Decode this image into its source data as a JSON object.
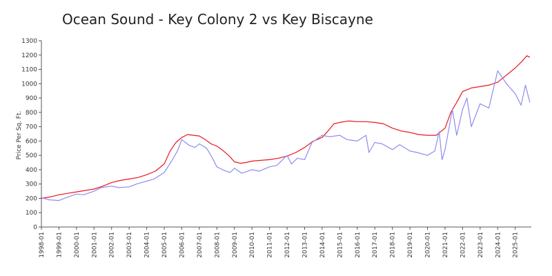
{
  "chart_data": {
    "type": "line",
    "title": "Ocean Sound - Key Colony 2 vs Key Biscayne",
    "ylabel": "Price Per Sq. Ft.",
    "xlabel": "",
    "ylim": [
      0,
      1300
    ],
    "yticks": [
      0,
      100,
      200,
      300,
      400,
      500,
      600,
      700,
      800,
      900,
      1000,
      1100,
      1200,
      1300
    ],
    "xlim": [
      "1998-01",
      "2025-12"
    ],
    "xticks": [
      "1998-01",
      "1999-01",
      "2000-01",
      "2001-01",
      "2002-01",
      "2003-01",
      "2004-01",
      "2005-01",
      "2006-01",
      "2007-01",
      "2008-01",
      "2009-01",
      "2010-01",
      "2011-01",
      "2012-01",
      "2013-01",
      "2014-01",
      "2015-01",
      "2016-01",
      "2017-01",
      "2018-01",
      "2019-01",
      "2020-01",
      "2021-01",
      "2022-01",
      "2023-01",
      "2024-01",
      "2025-01"
    ],
    "grid": false,
    "series": [
      {
        "color": "#e8141e",
        "points": [
          [
            "1998-01",
            200
          ],
          [
            "1998-07",
            210
          ],
          [
            "1999-01",
            225
          ],
          [
            "1999-07",
            235
          ],
          [
            "2000-01",
            245
          ],
          [
            "2000-07",
            255
          ],
          [
            "2001-01",
            265
          ],
          [
            "2001-07",
            285
          ],
          [
            "2002-01",
            310
          ],
          [
            "2002-07",
            325
          ],
          [
            "2003-01",
            335
          ],
          [
            "2003-07",
            345
          ],
          [
            "2004-01",
            365
          ],
          [
            "2004-07",
            390
          ],
          [
            "2005-01",
            440
          ],
          [
            "2005-05",
            530
          ],
          [
            "2005-09",
            590
          ],
          [
            "2006-01",
            625
          ],
          [
            "2006-05",
            645
          ],
          [
            "2006-09",
            640
          ],
          [
            "2007-01",
            635
          ],
          [
            "2007-05",
            610
          ],
          [
            "2007-09",
            580
          ],
          [
            "2008-01",
            565
          ],
          [
            "2008-05",
            535
          ],
          [
            "2008-09",
            500
          ],
          [
            "2009-01",
            455
          ],
          [
            "2009-05",
            445
          ],
          [
            "2009-09",
            450
          ],
          [
            "2010-01",
            460
          ],
          [
            "2010-07",
            465
          ],
          [
            "2011-01",
            470
          ],
          [
            "2011-07",
            480
          ],
          [
            "2012-01",
            495
          ],
          [
            "2012-07",
            520
          ],
          [
            "2013-01",
            555
          ],
          [
            "2013-07",
            600
          ],
          [
            "2014-01",
            625
          ],
          [
            "2014-05",
            670
          ],
          [
            "2014-09",
            720
          ],
          [
            "2015-01",
            730
          ],
          [
            "2015-07",
            740
          ],
          [
            "2016-01",
            735
          ],
          [
            "2016-07",
            735
          ],
          [
            "2017-01",
            730
          ],
          [
            "2017-07",
            720
          ],
          [
            "2018-01",
            690
          ],
          [
            "2018-07",
            670
          ],
          [
            "2019-01",
            660
          ],
          [
            "2019-07",
            645
          ],
          [
            "2020-01",
            640
          ],
          [
            "2020-07",
            640
          ],
          [
            "2021-01",
            690
          ],
          [
            "2021-05",
            800
          ],
          [
            "2021-09",
            870
          ],
          [
            "2022-01",
            945
          ],
          [
            "2022-07",
            970
          ],
          [
            "2023-01",
            980
          ],
          [
            "2023-07",
            990
          ],
          [
            "2024-01",
            1010
          ],
          [
            "2024-07",
            1060
          ],
          [
            "2025-01",
            1110
          ],
          [
            "2025-05",
            1150
          ],
          [
            "2025-09",
            1195
          ],
          [
            "2025-11",
            1185
          ]
        ]
      },
      {
        "color": "#8c8cf0",
        "points": [
          [
            "1998-01",
            205
          ],
          [
            "1998-06",
            190
          ],
          [
            "1999-01",
            185
          ],
          [
            "1999-06",
            205
          ],
          [
            "2000-01",
            230
          ],
          [
            "2000-06",
            225
          ],
          [
            "2001-01",
            250
          ],
          [
            "2001-06",
            275
          ],
          [
            "2002-01",
            285
          ],
          [
            "2002-06",
            275
          ],
          [
            "2003-01",
            280
          ],
          [
            "2003-06",
            300
          ],
          [
            "2004-01",
            320
          ],
          [
            "2004-06",
            335
          ],
          [
            "2005-01",
            380
          ],
          [
            "2005-06",
            460
          ],
          [
            "2005-10",
            530
          ],
          [
            "2006-01",
            610
          ],
          [
            "2006-06",
            570
          ],
          [
            "2006-10",
            555
          ],
          [
            "2007-01",
            580
          ],
          [
            "2007-06",
            550
          ],
          [
            "2007-10",
            480
          ],
          [
            "2008-01",
            420
          ],
          [
            "2008-06",
            395
          ],
          [
            "2008-10",
            380
          ],
          [
            "2009-01",
            410
          ],
          [
            "2009-06",
            375
          ],
          [
            "2010-01",
            400
          ],
          [
            "2010-06",
            390
          ],
          [
            "2011-01",
            420
          ],
          [
            "2011-06",
            430
          ],
          [
            "2012-01",
            500
          ],
          [
            "2012-04",
            440
          ],
          [
            "2012-08",
            480
          ],
          [
            "2013-01",
            470
          ],
          [
            "2013-06",
            590
          ],
          [
            "2014-01",
            640
          ],
          [
            "2014-06",
            630
          ],
          [
            "2015-01",
            640
          ],
          [
            "2015-06",
            610
          ],
          [
            "2016-01",
            600
          ],
          [
            "2016-07",
            640
          ],
          [
            "2016-09",
            520
          ],
          [
            "2017-01",
            590
          ],
          [
            "2017-06",
            580
          ],
          [
            "2018-01",
            540
          ],
          [
            "2018-06",
            575
          ],
          [
            "2019-01",
            530
          ],
          [
            "2019-06",
            520
          ],
          [
            "2020-01",
            500
          ],
          [
            "2020-06",
            530
          ],
          [
            "2020-09",
            665
          ],
          [
            "2020-11",
            470
          ],
          [
            "2021-01",
            540
          ],
          [
            "2021-06",
            820
          ],
          [
            "2021-09",
            640
          ],
          [
            "2022-01",
            820
          ],
          [
            "2022-04",
            900
          ],
          [
            "2022-07",
            700
          ],
          [
            "2023-01",
            860
          ],
          [
            "2023-07",
            830
          ],
          [
            "2024-01",
            1090
          ],
          [
            "2024-07",
            1000
          ],
          [
            "2025-01",
            930
          ],
          [
            "2025-05",
            850
          ],
          [
            "2025-08",
            990
          ],
          [
            "2025-11",
            870
          ]
        ]
      }
    ]
  }
}
